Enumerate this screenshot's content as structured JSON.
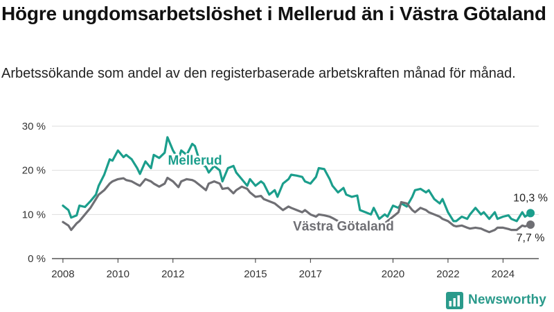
{
  "header": {
    "title": "Högre ungdomsarbetslöshet i Mellerud än i Västra Götaland",
    "subtitle": "Arbetssökande som andel av den registerbaserade arbetskraften månad för månad."
  },
  "brand": {
    "name": "Newsworthy",
    "icon": "bar-chart-logo-icon"
  },
  "colors": {
    "mellerud": "#1b9e8c",
    "vastra_gotaland": "#6f6f74",
    "grid": "#dddddd",
    "axis": "#333333"
  },
  "chart_data": {
    "type": "line",
    "title": "Högre ungdomsarbetslöshet i Mellerud än i Västra Götaland",
    "subtitle": "Arbetssökande som andel av den registerbaserade arbetskraften månad för månad.",
    "xlabel": "",
    "ylabel": "",
    "xlim": [
      2007.6,
      2025.3
    ],
    "ylim": [
      0,
      30
    ],
    "x_ticks": [
      2008,
      2010,
      2012,
      2015,
      2017,
      2020,
      2022,
      2024
    ],
    "x_tick_labels": [
      "2008",
      "2010",
      "2012",
      "2015",
      "2017",
      "2020",
      "2022",
      "2024"
    ],
    "y_ticks": [
      0,
      10,
      20,
      30
    ],
    "y_tick_labels": [
      "0 %",
      "10 %",
      "20 %",
      "30 %"
    ],
    "grid": true,
    "legend": "inline labels",
    "series": [
      {
        "name": "Mellerud",
        "label_pos": [
          2012.8,
          21.3
        ],
        "end_label": "10,3 %",
        "points": [
          [
            2008.0,
            12.0
          ],
          [
            2008.2,
            11.0
          ],
          [
            2008.3,
            9.3
          ],
          [
            2008.5,
            9.8
          ],
          [
            2008.6,
            12.0
          ],
          [
            2008.8,
            11.7
          ],
          [
            2009.0,
            13.0
          ],
          [
            2009.2,
            14.5
          ],
          [
            2009.3,
            16.5
          ],
          [
            2009.5,
            19.0
          ],
          [
            2009.7,
            22.5
          ],
          [
            2009.8,
            22.2
          ],
          [
            2010.0,
            24.5
          ],
          [
            2010.2,
            23.0
          ],
          [
            2010.3,
            23.5
          ],
          [
            2010.5,
            22.5
          ],
          [
            2010.7,
            20.5
          ],
          [
            2010.8,
            19.2
          ],
          [
            2011.0,
            22.0
          ],
          [
            2011.2,
            20.5
          ],
          [
            2011.3,
            23.5
          ],
          [
            2011.5,
            22.8
          ],
          [
            2011.7,
            24.0
          ],
          [
            2011.8,
            27.5
          ],
          [
            2012.0,
            24.5
          ],
          [
            2012.2,
            22.5
          ],
          [
            2012.3,
            24.5
          ],
          [
            2012.5,
            23.5
          ],
          [
            2012.7,
            26.0
          ],
          [
            2012.8,
            25.5
          ],
          [
            2013.0,
            21.5
          ],
          [
            2013.2,
            20.8
          ],
          [
            2013.3,
            19.5
          ],
          [
            2013.5,
            21.0
          ],
          [
            2013.7,
            20.0
          ],
          [
            2013.8,
            17.5
          ],
          [
            2014.0,
            20.5
          ],
          [
            2014.2,
            21.0
          ],
          [
            2014.3,
            19.5
          ],
          [
            2014.5,
            18.0
          ],
          [
            2014.7,
            16.5
          ],
          [
            2014.8,
            18.0
          ],
          [
            2015.0,
            16.5
          ],
          [
            2015.2,
            17.5
          ],
          [
            2015.3,
            17.0
          ],
          [
            2015.5,
            14.5
          ],
          [
            2015.7,
            15.5
          ],
          [
            2015.8,
            14.0
          ],
          [
            2016.0,
            17.0
          ],
          [
            2016.2,
            18.0
          ],
          [
            2016.3,
            19.0
          ],
          [
            2016.5,
            18.8
          ],
          [
            2016.7,
            18.5
          ],
          [
            2016.8,
            17.5
          ],
          [
            2017.0,
            17.0
          ],
          [
            2017.2,
            18.5
          ],
          [
            2017.3,
            20.5
          ],
          [
            2017.5,
            20.3
          ],
          [
            2017.7,
            18.0
          ],
          [
            2017.8,
            16.5
          ],
          [
            2018.0,
            15.0
          ],
          [
            2018.2,
            16.0
          ],
          [
            2018.3,
            14.5
          ],
          [
            2018.5,
            14.0
          ],
          [
            2018.7,
            14.3
          ],
          [
            2018.8,
            11.0
          ],
          [
            2019.0,
            10.5
          ],
          [
            2019.2,
            10.0
          ],
          [
            2019.3,
            11.5
          ],
          [
            2019.5,
            9.0
          ],
          [
            2019.7,
            10.0
          ],
          [
            2019.8,
            9.5
          ],
          [
            2020.0,
            12.0
          ],
          [
            2020.2,
            11.5
          ],
          [
            2020.3,
            12.5
          ],
          [
            2020.5,
            11.8
          ],
          [
            2020.7,
            14.0
          ],
          [
            2020.8,
            15.5
          ],
          [
            2021.0,
            15.8
          ],
          [
            2021.2,
            15.0
          ],
          [
            2021.3,
            15.5
          ],
          [
            2021.5,
            13.5
          ],
          [
            2021.7,
            12.5
          ],
          [
            2021.8,
            13.5
          ],
          [
            2022.0,
            10.5
          ],
          [
            2022.2,
            8.5
          ],
          [
            2022.3,
            8.5
          ],
          [
            2022.5,
            9.5
          ],
          [
            2022.7,
            9.0
          ],
          [
            2022.8,
            10.0
          ],
          [
            2023.0,
            11.5
          ],
          [
            2023.2,
            10.0
          ],
          [
            2023.3,
            10.5
          ],
          [
            2023.5,
            9.0
          ],
          [
            2023.7,
            10.5
          ],
          [
            2023.8,
            9.0
          ],
          [
            2024.0,
            9.5
          ],
          [
            2024.2,
            9.8
          ],
          [
            2024.3,
            9.0
          ],
          [
            2024.5,
            8.5
          ],
          [
            2024.7,
            10.5
          ],
          [
            2024.8,
            9.5
          ],
          [
            2025.0,
            10.3
          ]
        ]
      },
      {
        "name": "Västra Götaland",
        "label_pos": [
          2018.2,
          6.4
        ],
        "end_label": "7,7 %",
        "points": [
          [
            2008.0,
            8.3
          ],
          [
            2008.2,
            7.5
          ],
          [
            2008.3,
            6.5
          ],
          [
            2008.5,
            8.0
          ],
          [
            2008.6,
            8.5
          ],
          [
            2008.8,
            10.0
          ],
          [
            2009.0,
            11.5
          ],
          [
            2009.2,
            13.5
          ],
          [
            2009.3,
            14.5
          ],
          [
            2009.5,
            15.5
          ],
          [
            2009.7,
            17.0
          ],
          [
            2009.8,
            17.5
          ],
          [
            2010.0,
            18.0
          ],
          [
            2010.2,
            18.2
          ],
          [
            2010.3,
            17.8
          ],
          [
            2010.5,
            17.5
          ],
          [
            2010.7,
            16.8
          ],
          [
            2010.8,
            16.5
          ],
          [
            2011.0,
            18.0
          ],
          [
            2011.2,
            17.5
          ],
          [
            2011.3,
            17.0
          ],
          [
            2011.5,
            16.3
          ],
          [
            2011.7,
            17.0
          ],
          [
            2011.8,
            18.3
          ],
          [
            2012.0,
            17.5
          ],
          [
            2012.2,
            16.2
          ],
          [
            2012.3,
            17.5
          ],
          [
            2012.5,
            18.0
          ],
          [
            2012.7,
            17.8
          ],
          [
            2012.8,
            17.5
          ],
          [
            2013.0,
            16.5
          ],
          [
            2013.2,
            15.5
          ],
          [
            2013.3,
            17.0
          ],
          [
            2013.5,
            17.5
          ],
          [
            2013.7,
            17.0
          ],
          [
            2013.8,
            15.8
          ],
          [
            2014.0,
            16.0
          ],
          [
            2014.2,
            14.8
          ],
          [
            2014.3,
            15.5
          ],
          [
            2014.5,
            16.3
          ],
          [
            2014.7,
            15.8
          ],
          [
            2014.8,
            15.0
          ],
          [
            2015.0,
            14.0
          ],
          [
            2015.2,
            14.2
          ],
          [
            2015.3,
            13.5
          ],
          [
            2015.5,
            13.0
          ],
          [
            2015.7,
            12.5
          ],
          [
            2015.8,
            12.0
          ],
          [
            2016.0,
            11.0
          ],
          [
            2016.2,
            11.8
          ],
          [
            2016.3,
            11.5
          ],
          [
            2016.5,
            11.0
          ],
          [
            2016.7,
            10.5
          ],
          [
            2016.8,
            11.0
          ],
          [
            2017.0,
            10.0
          ],
          [
            2017.2,
            9.5
          ],
          [
            2017.3,
            10.0
          ],
          [
            2017.5,
            9.8
          ],
          [
            2017.7,
            9.5
          ],
          [
            2017.8,
            9.2
          ],
          [
            2018.0,
            8.5
          ],
          [
            2018.2,
            8.3
          ],
          [
            2018.3,
            8.0
          ],
          [
            2018.5,
            8.0
          ],
          [
            2018.7,
            7.5
          ],
          [
            2018.8,
            7.3
          ],
          [
            2019.0,
            7.5
          ],
          [
            2019.2,
            7.5
          ],
          [
            2019.3,
            7.8
          ],
          [
            2019.5,
            7.8
          ],
          [
            2019.7,
            8.0
          ],
          [
            2019.8,
            8.5
          ],
          [
            2020.0,
            9.5
          ],
          [
            2020.2,
            10.5
          ],
          [
            2020.3,
            12.8
          ],
          [
            2020.5,
            12.5
          ],
          [
            2020.7,
            11.0
          ],
          [
            2020.8,
            10.5
          ],
          [
            2021.0,
            11.5
          ],
          [
            2021.2,
            11.0
          ],
          [
            2021.3,
            10.5
          ],
          [
            2021.5,
            10.0
          ],
          [
            2021.7,
            9.5
          ],
          [
            2021.8,
            9.0
          ],
          [
            2022.0,
            8.5
          ],
          [
            2022.2,
            7.5
          ],
          [
            2022.3,
            7.3
          ],
          [
            2022.5,
            7.5
          ],
          [
            2022.7,
            7.0
          ],
          [
            2022.8,
            6.8
          ],
          [
            2023.0,
            7.0
          ],
          [
            2023.2,
            6.8
          ],
          [
            2023.3,
            6.5
          ],
          [
            2023.5,
            6.0
          ],
          [
            2023.7,
            6.5
          ],
          [
            2023.8,
            7.0
          ],
          [
            2024.0,
            7.0
          ],
          [
            2024.2,
            6.7
          ],
          [
            2024.3,
            6.5
          ],
          [
            2024.5,
            6.5
          ],
          [
            2024.7,
            7.5
          ],
          [
            2024.8,
            7.3
          ],
          [
            2025.0,
            7.7
          ]
        ]
      }
    ]
  }
}
